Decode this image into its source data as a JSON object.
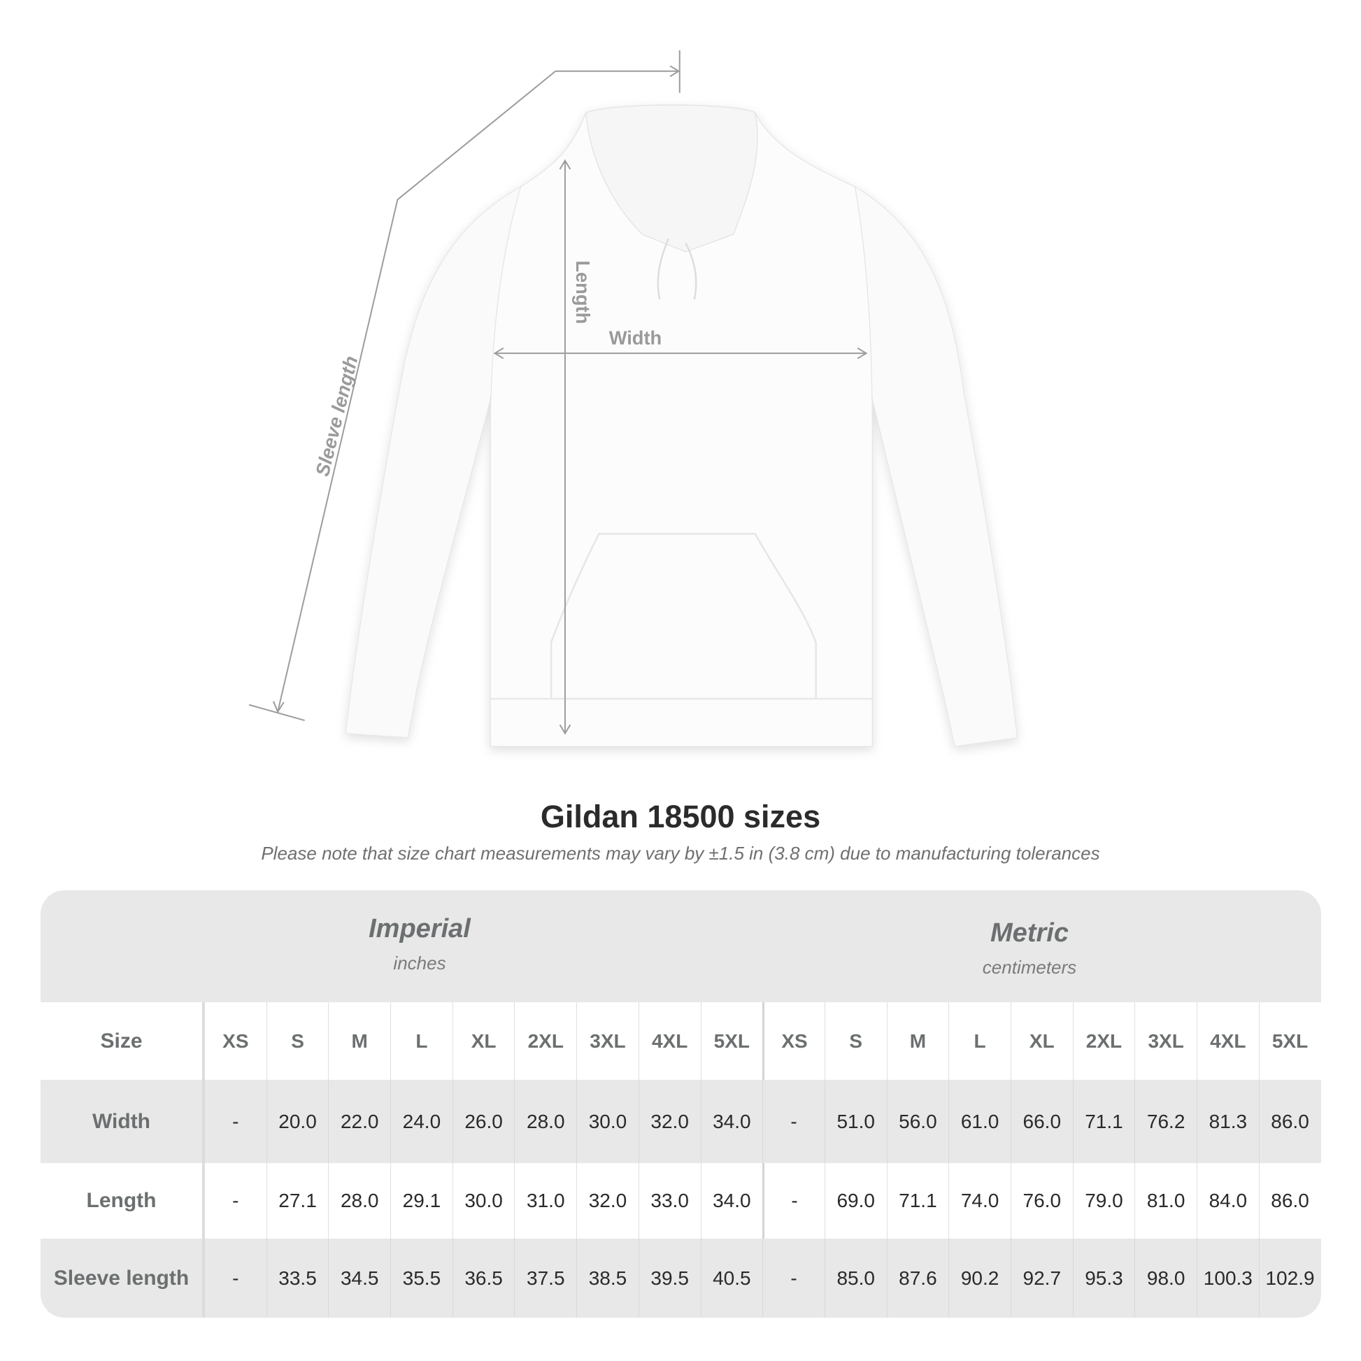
{
  "diagram": {
    "labels": {
      "sleeve": "Sleeve length",
      "length": "Length",
      "width": "Width"
    }
  },
  "title": "Gildan 18500 sizes",
  "subtitle": "Please note that size chart measurements may vary by ±1.5 in (3.8 cm) due to manufacturing tolerances",
  "table": {
    "imperial": {
      "name": "Imperial",
      "unit": "inches"
    },
    "metric": {
      "name": "Metric",
      "unit": "centimeters"
    },
    "size_label": "Size",
    "sizes": [
      "XS",
      "S",
      "M",
      "L",
      "XL",
      "2XL",
      "3XL",
      "4XL",
      "5XL",
      "XS",
      "S",
      "M",
      "L",
      "XL",
      "2XL",
      "3XL",
      "4XL",
      "5XL"
    ],
    "rows": [
      {
        "label": "Width",
        "values": [
          "-",
          "20.0",
          "22.0",
          "24.0",
          "26.0",
          "28.0",
          "30.0",
          "32.0",
          "34.0",
          "-",
          "51.0",
          "56.0",
          "61.0",
          "66.0",
          "71.1",
          "76.2",
          "81.3",
          "86.0"
        ]
      },
      {
        "label": "Length",
        "values": [
          "-",
          "27.1",
          "28.0",
          "29.1",
          "30.0",
          "31.0",
          "32.0",
          "33.0",
          "34.0",
          "-",
          "69.0",
          "71.1",
          "74.0",
          "76.0",
          "79.0",
          "81.0",
          "84.0",
          "86.0"
        ]
      },
      {
        "label": "Sleeve length",
        "values": [
          "-",
          "33.5",
          "34.5",
          "35.5",
          "36.5",
          "37.5",
          "38.5",
          "39.5",
          "40.5",
          "-",
          "85.0",
          "87.6",
          "90.2",
          "92.7",
          "95.3",
          "98.0",
          "100.3",
          "102.9"
        ]
      }
    ]
  }
}
